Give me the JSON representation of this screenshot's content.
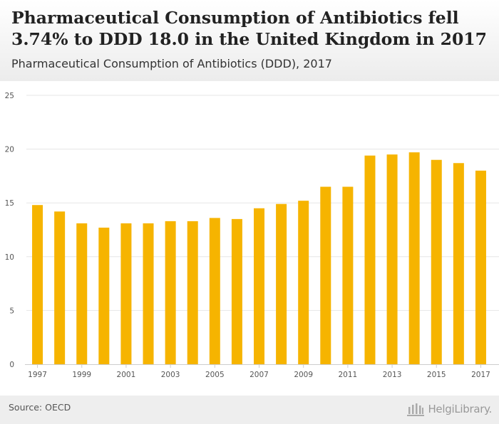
{
  "header": {
    "title": "Pharmaceutical Consumption of Antibiotics fell 3.74% to DDD 18.0 in the United Kingdom in 2017",
    "subtitle": "Pharmaceutical Consumption of Antibiotics (DDD), 2017"
  },
  "footer": {
    "source": "Source: OECD",
    "logo_text": "HelgiLibrary."
  },
  "colors": {
    "bar": "#f6b400",
    "grid": "#e6e6e6",
    "axis_text": "#555555"
  },
  "chart_data": {
    "type": "bar",
    "title": "",
    "xlabel": "",
    "ylabel": "",
    "ylim": [
      0,
      25
    ],
    "yticks": [
      0,
      5,
      10,
      15,
      20,
      25
    ],
    "categories": [
      "1997",
      "1998",
      "1999",
      "2000",
      "2001",
      "2002",
      "2003",
      "2004",
      "2005",
      "2006",
      "2007",
      "2008",
      "2009",
      "2010",
      "2011",
      "2012",
      "2013",
      "2014",
      "2015",
      "2016",
      "2017"
    ],
    "xtick_labels": [
      "1997",
      "1999",
      "2001",
      "2003",
      "2005",
      "2007",
      "2009",
      "2011",
      "2013",
      "2015",
      "2017"
    ],
    "values": [
      14.8,
      14.2,
      13.1,
      12.7,
      13.1,
      13.1,
      13.3,
      13.3,
      13.6,
      13.5,
      14.5,
      14.9,
      15.2,
      16.5,
      16.5,
      19.4,
      19.5,
      19.7,
      19.0,
      18.7,
      18.0
    ],
    "grid": true,
    "legend": "none"
  }
}
